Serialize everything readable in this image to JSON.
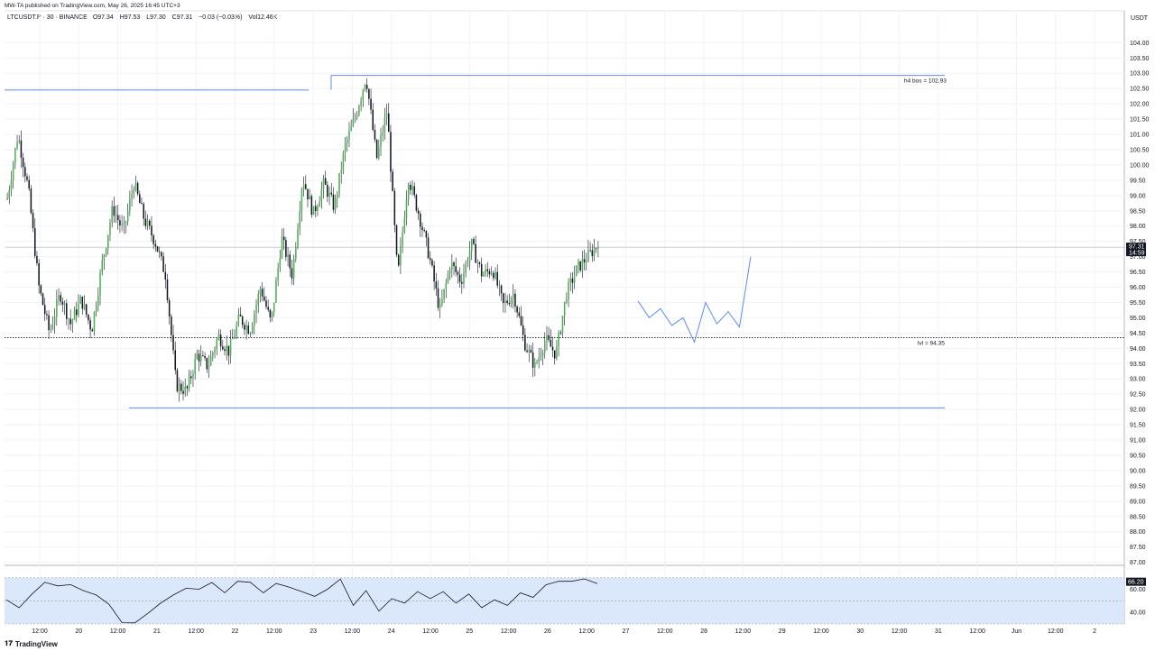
{
  "publish_line": "MW-TA published on TradingView.com, May 26, 2025 16:45 UTC+3",
  "header": {
    "symbol": "LTCUSDT.P · 30 · BINANCE",
    "open": "O97.34",
    "high": "H97.53",
    "low": "L97.30",
    "close": "C97.31",
    "change": "−0.03 (−0.03%)",
    "volume": "Vol12.46K"
  },
  "currency": "USDT",
  "footer": {
    "brand": "TradingView"
  },
  "colors": {
    "up": "#4caf50",
    "down": "#131722",
    "line": "#5b8def",
    "rsi_fill": "#dbe7fb",
    "price_badge": "#131722"
  },
  "chart_data": {
    "type": "candlestick",
    "symbol": "LTCUSDT.P",
    "interval": "30",
    "y_ticks": [
      104.0,
      103.5,
      103.0,
      102.5,
      102.0,
      101.5,
      101.0,
      100.5,
      100.0,
      99.5,
      99.0,
      98.5,
      98.0,
      97.5,
      97.0,
      96.5,
      96.0,
      95.5,
      95.0,
      94.5,
      94.0,
      93.5,
      93.0,
      92.5,
      92.0,
      91.5,
      91.0,
      90.5,
      90.0,
      89.5,
      89.0,
      88.5,
      88.0,
      87.5,
      87.0
    ],
    "y_range": [
      86.9,
      104.6
    ],
    "x_labels": [
      "12:00",
      "20",
      "12:00",
      "21",
      "12:00",
      "22",
      "12:00",
      "23",
      "12:00",
      "24",
      "12:00",
      "25",
      "12:00",
      "26",
      "12:00",
      "27",
      "12:00",
      "28",
      "12:00",
      "29",
      "12:00",
      "30",
      "12:00",
      "31",
      "12:00",
      "Jun",
      "12:00",
      "2"
    ],
    "last_price": {
      "value": 97.31,
      "label": "97.31",
      "countdown": "14:59"
    },
    "price_path": [
      98.9,
      101.0,
      99.2,
      96.0,
      94.5,
      95.8,
      94.8,
      95.6,
      94.6,
      96.8,
      98.6,
      97.8,
      99.4,
      98.2,
      97.5,
      96.4,
      92.8,
      92.6,
      93.8,
      93.4,
      94.4,
      93.9,
      95.0,
      94.6,
      96.0,
      94.8,
      97.6,
      96.4,
      99.6,
      98.4,
      99.4,
      98.6,
      100.6,
      101.6,
      102.9,
      100.2,
      101.8,
      96.3,
      99.6,
      98.4,
      97.0,
      95.2,
      96.8,
      96.2,
      97.4,
      96.4,
      96.6,
      95.4,
      95.8,
      94.2,
      93.4,
      94.3,
      93.8,
      95.8,
      96.6,
      97.0,
      97.4
    ],
    "rsi": {
      "value": "66.20",
      "ticks": [
        "60.00",
        "40.00"
      ],
      "range": [
        30,
        80
      ],
      "band": [
        30,
        70
      ],
      "path": [
        50,
        45,
        55,
        67,
        62,
        65,
        58,
        56,
        46,
        32,
        30,
        40,
        47,
        56,
        60,
        61,
        65,
        58,
        66,
        67,
        56,
        66,
        61,
        59,
        53,
        61,
        68,
        47,
        58,
        42,
        51,
        49,
        57,
        53,
        57,
        49,
        55,
        45,
        50,
        47,
        56,
        54,
        63,
        68,
        66,
        70,
        64
      ]
    },
    "annotations": [
      {
        "label": "h4 bos = 102.93",
        "price": 102.93
      },
      {
        "label": "lvl = 94.35",
        "price": 94.35
      }
    ],
    "levels": [
      102.45,
      92.05
    ],
    "projection": [
      95.55,
      95.0,
      95.3,
      94.75,
      95.0,
      94.2,
      95.5,
      94.8,
      95.2,
      94.7,
      97.0
    ]
  }
}
